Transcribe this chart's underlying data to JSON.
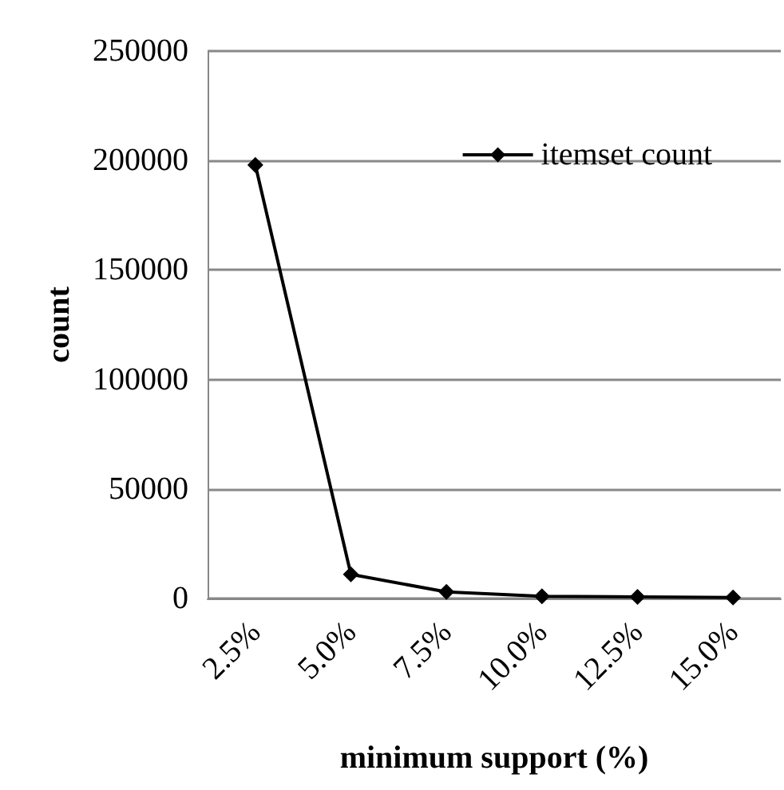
{
  "chart_data": {
    "type": "line",
    "xlabel": "minimum support (%)",
    "ylabel": "count",
    "categories": [
      "2.5%",
      "5.0%",
      "7.5%",
      "10.0%",
      "12.5%",
      "15.0%"
    ],
    "series": [
      {
        "name": "itemset count",
        "color": "#000000",
        "values": [
          198000,
          11000,
          3000,
          1000,
          700,
          500
        ]
      }
    ],
    "ylim": [
      0,
      250000
    ],
    "yticks": [
      0,
      50000,
      100000,
      150000,
      200000,
      250000
    ],
    "grid": "y",
    "legend": "top right",
    "marker": "diamond",
    "line_style": "solid"
  }
}
